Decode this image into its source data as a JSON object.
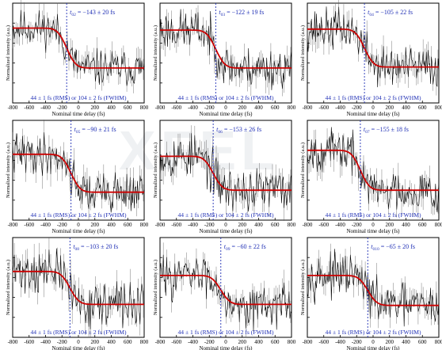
{
  "chart_data": [
    {
      "type": "line",
      "panel_id": "t02",
      "t0_label": "02",
      "t0": -143,
      "t0_err": 20,
      "width_text": "44 ± 1 fs (RMS) or 104 ± 2 fs (FWHM)",
      "xlabel": "Nominal time delay (fs)",
      "ylabel": "Normalized intensity (a.u.)",
      "xlim": [
        -800,
        800
      ],
      "xticks": [
        -800,
        -600,
        -400,
        -200,
        0,
        200,
        400,
        600,
        800
      ],
      "level_high": 0.75,
      "level_low": 0.35,
      "noise": 0.09,
      "seed": 11,
      "series": [
        {
          "name": "",
          "type": "data-with-errorbars",
          "color": "#000000"
        },
        {
          "name": "",
          "type": "fit",
          "color": "#cc0000"
        }
      ]
    },
    {
      "type": "line",
      "panel_id": "t03",
      "t0_label": "03",
      "t0": -122,
      "t0_err": 19,
      "width_text": "44 ± 1 fs (RMS) or 104 ± 2 fs (FWHM)",
      "xlabel": "Nominal time delay (fs)",
      "ylabel": "Normalized intensity (a.u.)",
      "xlim": [
        -800,
        800
      ],
      "xticks": [
        -800,
        -600,
        -400,
        -200,
        0,
        200,
        400,
        600,
        800
      ],
      "level_high": 0.73,
      "level_low": 0.35,
      "noise": 0.1,
      "seed": 23,
      "series": [
        {
          "name": "",
          "type": "data-with-errorbars",
          "color": "#000000"
        },
        {
          "name": "",
          "type": "fit",
          "color": "#cc0000"
        }
      ]
    },
    {
      "type": "line",
      "panel_id": "t04",
      "t0_label": "04",
      "t0": -105,
      "t0_err": 22,
      "width_text": "44 ± 1 fs (RMS) or 104 ± 2 fs (FWHM)",
      "xlabel": "Nominal time delay (fs)",
      "ylabel": "Normalized intensity (a.u.)",
      "xlim": [
        -800,
        800
      ],
      "xticks": [
        -800,
        -600,
        -400,
        -200,
        0,
        200,
        400,
        600,
        800
      ],
      "level_high": 0.74,
      "level_low": 0.36,
      "noise": 0.1,
      "seed": 37,
      "series": [
        {
          "name": "",
          "type": "data-with-errorbars",
          "color": "#000000"
        },
        {
          "name": "",
          "type": "fit",
          "color": "#cc0000"
        }
      ]
    },
    {
      "type": "line",
      "panel_id": "t05",
      "t0_label": "05",
      "t0": -90,
      "t0_err": 21,
      "width_text": "44 ± 1 fs (RMS) or 104 ± 2 fs (FWHM)",
      "xlabel": "Nominal time delay (fs)",
      "ylabel": "Normalized intensity (a.u.)",
      "xlim": [
        -800,
        800
      ],
      "xticks": [
        -800,
        -600,
        -400,
        -200,
        0,
        200,
        400,
        600,
        800
      ],
      "level_high": 0.66,
      "level_low": 0.28,
      "noise": 0.1,
      "seed": 41,
      "series": [
        {
          "name": "",
          "type": "data-with-errorbars",
          "color": "#000000"
        },
        {
          "name": "",
          "type": "fit",
          "color": "#cc0000"
        }
      ]
    },
    {
      "type": "line",
      "panel_id": "t06",
      "t0_label": "06",
      "t0": -153,
      "t0_err": 26,
      "width_text": "44 ± 1 fs (RMS) or 104 ± 2 fs (FWHM)",
      "xlabel": "Nominal time delay (fs)",
      "ylabel": "Normalized intensity (a.u.)",
      "xlim": [
        -800,
        800
      ],
      "xticks": [
        -800,
        -600,
        -400,
        -200,
        0,
        200,
        400,
        600,
        800
      ],
      "level_high": 0.64,
      "level_low": 0.3,
      "noise": 0.11,
      "seed": 53,
      "series": [
        {
          "name": "",
          "type": "data-with-errorbars",
          "color": "#000000"
        },
        {
          "name": "",
          "type": "fit",
          "color": "#cc0000"
        }
      ]
    },
    {
      "type": "line",
      "panel_id": "t07",
      "t0_label": "07",
      "t0": -155,
      "t0_err": 18,
      "width_text": "44 ± 1 fs (RMS) or 104 ± 2 fs (FWHM)",
      "xlabel": "Nominal time delay (fs)",
      "ylabel": "Normalized intensity (a.u.)",
      "xlim": [
        -800,
        800
      ],
      "xticks": [
        -800,
        -600,
        -400,
        -200,
        0,
        200,
        400,
        600,
        800
      ],
      "level_high": 0.7,
      "level_low": 0.3,
      "noise": 0.1,
      "seed": 67,
      "series": [
        {
          "name": "",
          "type": "data-with-errorbars",
          "color": "#000000"
        },
        {
          "name": "",
          "type": "fit",
          "color": "#cc0000"
        }
      ]
    },
    {
      "type": "line",
      "panel_id": "t08",
      "t0_label": "08",
      "t0": -103,
      "t0_err": 20,
      "width_text": "44 ± 1 fs (RMS) or 104 ± 2 fs (FWHM)",
      "xlabel": "Nominal time delay (fs)",
      "ylabel": "Normalized intensity (a.u.)",
      "xlim": [
        -800,
        800
      ],
      "xticks": [
        -800,
        -600,
        -400,
        -200,
        0,
        200,
        400,
        600,
        800
      ],
      "level_high": 0.66,
      "level_low": 0.33,
      "noise": 0.11,
      "seed": 71,
      "series": [
        {
          "name": "",
          "type": "data-with-errorbars",
          "color": "#000000"
        },
        {
          "name": "",
          "type": "fit",
          "color": "#cc0000"
        }
      ]
    },
    {
      "type": "line",
      "panel_id": "t09",
      "t0_label": "09",
      "t0": -60,
      "t0_err": 22,
      "width_text": "44 ± 1 fs (RMS) or 104 ± 2 fs (FWHM)",
      "xlabel": "Nominal time delay (fs)",
      "ylabel": "Normalized intensity (a.u.)",
      "xlim": [
        -800,
        800
      ],
      "xticks": [
        -800,
        -600,
        -400,
        -200,
        0,
        200,
        400,
        600,
        800
      ],
      "level_high": 0.62,
      "level_low": 0.33,
      "noise": 0.1,
      "seed": 83,
      "series": [
        {
          "name": "",
          "type": "data-with-errorbars",
          "color": "#000000"
        },
        {
          "name": "",
          "type": "fit",
          "color": "#cc0000"
        }
      ]
    },
    {
      "type": "line",
      "panel_id": "t010",
      "t0_label": "010",
      "t0": -65,
      "t0_err": 20,
      "width_text": "44 ± 1 fs (RMS) or 104 ± 2 fs (FWHM)",
      "xlabel": "Nominal time delay (fs)",
      "ylabel": "Normalized intensity (a.u.)",
      "xlim": [
        -800,
        800
      ],
      "xticks": [
        -800,
        -600,
        -400,
        -200,
        0,
        200,
        400,
        600,
        800
      ],
      "level_high": 0.62,
      "level_low": 0.32,
      "noise": 0.1,
      "seed": 97,
      "series": [
        {
          "name": "",
          "type": "data-with-errorbars",
          "color": "#000000"
        },
        {
          "name": "",
          "type": "fit",
          "color": "#cc0000"
        }
      ]
    }
  ],
  "colors": {
    "data": "#000000",
    "fit": "#cc0000",
    "annotation": "#1f2fb5",
    "axis": "#000000"
  },
  "watermark": "XFEL"
}
